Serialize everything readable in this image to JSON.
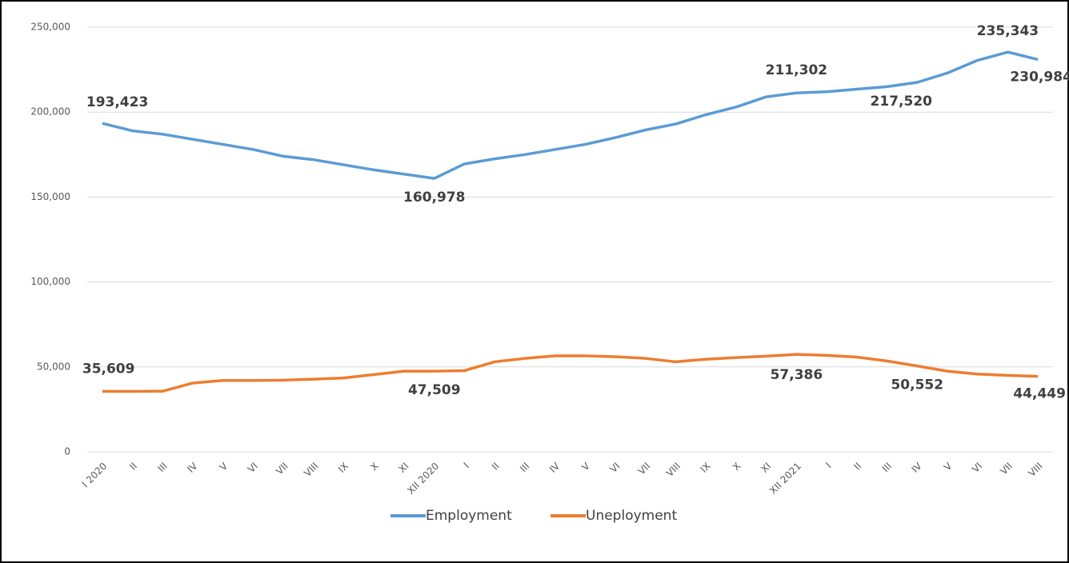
{
  "chart_data": {
    "type": "line",
    "categories": [
      "I 2020",
      "II",
      "III",
      "IV",
      "V",
      "VI",
      "VII",
      "VIII",
      "IX",
      "X",
      "XI",
      "XII 2020",
      "I",
      "II",
      "III",
      "IV",
      "V",
      "VI",
      "VII",
      "VIII",
      "IX",
      "X",
      "XI",
      "XII 2021",
      "I",
      "II",
      "III",
      "IV",
      "V",
      "VI",
      "VII",
      "VIII"
    ],
    "series": [
      {
        "name": "Employment",
        "color": "#5b9bd5",
        "values": [
          193423,
          189000,
          187000,
          184000,
          181000,
          178000,
          174000,
          172000,
          169000,
          166000,
          163500,
          160978,
          169500,
          172500,
          175000,
          178000,
          181000,
          185000,
          189500,
          193000,
          198500,
          203000,
          209000,
          211302,
          212000,
          213500,
          215000,
          217520,
          223000,
          230500,
          235343,
          230984
        ],
        "value_labels": [
          "193,423",
          null,
          null,
          null,
          null,
          null,
          null,
          null,
          null,
          null,
          null,
          "160,978",
          null,
          null,
          null,
          null,
          null,
          null,
          null,
          null,
          null,
          null,
          null,
          "211,302",
          null,
          null,
          null,
          "217,520",
          null,
          null,
          "235,343",
          "230,984"
        ]
      },
      {
        "name": "Uneployment",
        "color": "#ed7d31",
        "values": [
          35609,
          35600,
          35700,
          40500,
          42000,
          42000,
          42200,
          42800,
          43500,
          45500,
          47500,
          47509,
          47800,
          53000,
          55000,
          56500,
          56500,
          56000,
          55000,
          53000,
          54500,
          55500,
          56300,
          57386,
          56800,
          55800,
          53500,
          50552,
          47500,
          45800,
          45000,
          44449
        ],
        "value_labels": [
          "35,609",
          null,
          null,
          null,
          null,
          null,
          null,
          null,
          null,
          null,
          null,
          "47,509",
          null,
          null,
          null,
          null,
          null,
          null,
          null,
          null,
          null,
          null,
          null,
          "57,386",
          null,
          null,
          null,
          "50,552",
          null,
          null,
          null,
          "44,449"
        ]
      }
    ],
    "ylim": [
      0,
      250000
    ],
    "yticks": [
      0,
      {
        "value": 50000,
        "label": "50,000"
      },
      {
        "value": 100000,
        "label": "100,000"
      },
      {
        "value": 150000,
        "label": "150,000"
      },
      {
        "value": 200000,
        "label": "200,000"
      },
      {
        "value": 250000,
        "label": "250,000"
      }
    ],
    "grid": true,
    "legend": "bottom"
  }
}
